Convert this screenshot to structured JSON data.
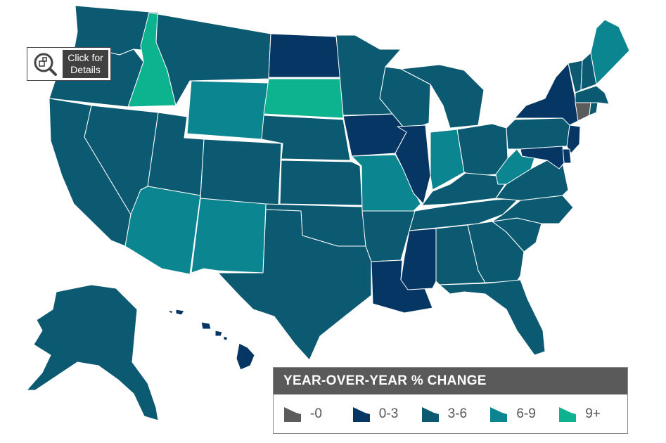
{
  "details_button": {
    "label": "Click for\nDetails",
    "icon": "magnifier-icon"
  },
  "legend": {
    "title": "YEAR-OVER-YEAR % CHANGE",
    "items": [
      {
        "key": "neg",
        "label": "-0",
        "color": "#5c5c5c"
      },
      {
        "key": "c0_3",
        "label": "0-3",
        "color": "#063764"
      },
      {
        "key": "c3_6",
        "label": "3-6",
        "color": "#0b5a72"
      },
      {
        "key": "c6_9",
        "label": "6-9",
        "color": "#0b8590"
      },
      {
        "key": "c9p",
        "label": "9+",
        "color": "#0db28f"
      }
    ]
  },
  "states": {
    "WA": "c3_6",
    "OR": "c3_6",
    "CA": "c3_6",
    "ID": "c9p",
    "NV": "c3_6",
    "MT": "c3_6",
    "WY": "c6_9",
    "UT": "c3_6",
    "AZ": "c6_9",
    "CO": "c3_6",
    "NM": "c6_9",
    "ND": "c0_3",
    "SD": "c9p",
    "NE": "c3_6",
    "KS": "c3_6",
    "OK": "c3_6",
    "TX": "c3_6",
    "MN": "c3_6",
    "IA": "c0_3",
    "MO": "c6_9",
    "AR": "c3_6",
    "LA": "c0_3",
    "WI": "c3_6",
    "IL": "c0_3",
    "MI": "c3_6",
    "IN": "c6_9",
    "OH": "c3_6",
    "KY": "c3_6",
    "TN": "c3_6",
    "MS": "c0_3",
    "AL": "c3_6",
    "GA": "c3_6",
    "FL": "c3_6",
    "SC": "c3_6",
    "NC": "c3_6",
    "VA": "c3_6",
    "WV": "c6_9",
    "PA": "c3_6",
    "NY": "c0_3",
    "NJ": "c0_3",
    "DE": "c0_3",
    "MD": "c0_3",
    "VT": "c3_6",
    "NH": "c3_6",
    "ME": "c6_9",
    "MA": "c3_6",
    "CT": "neg",
    "RI": "c3_6",
    "AK": "c3_6",
    "HI": "c0_3"
  }
}
